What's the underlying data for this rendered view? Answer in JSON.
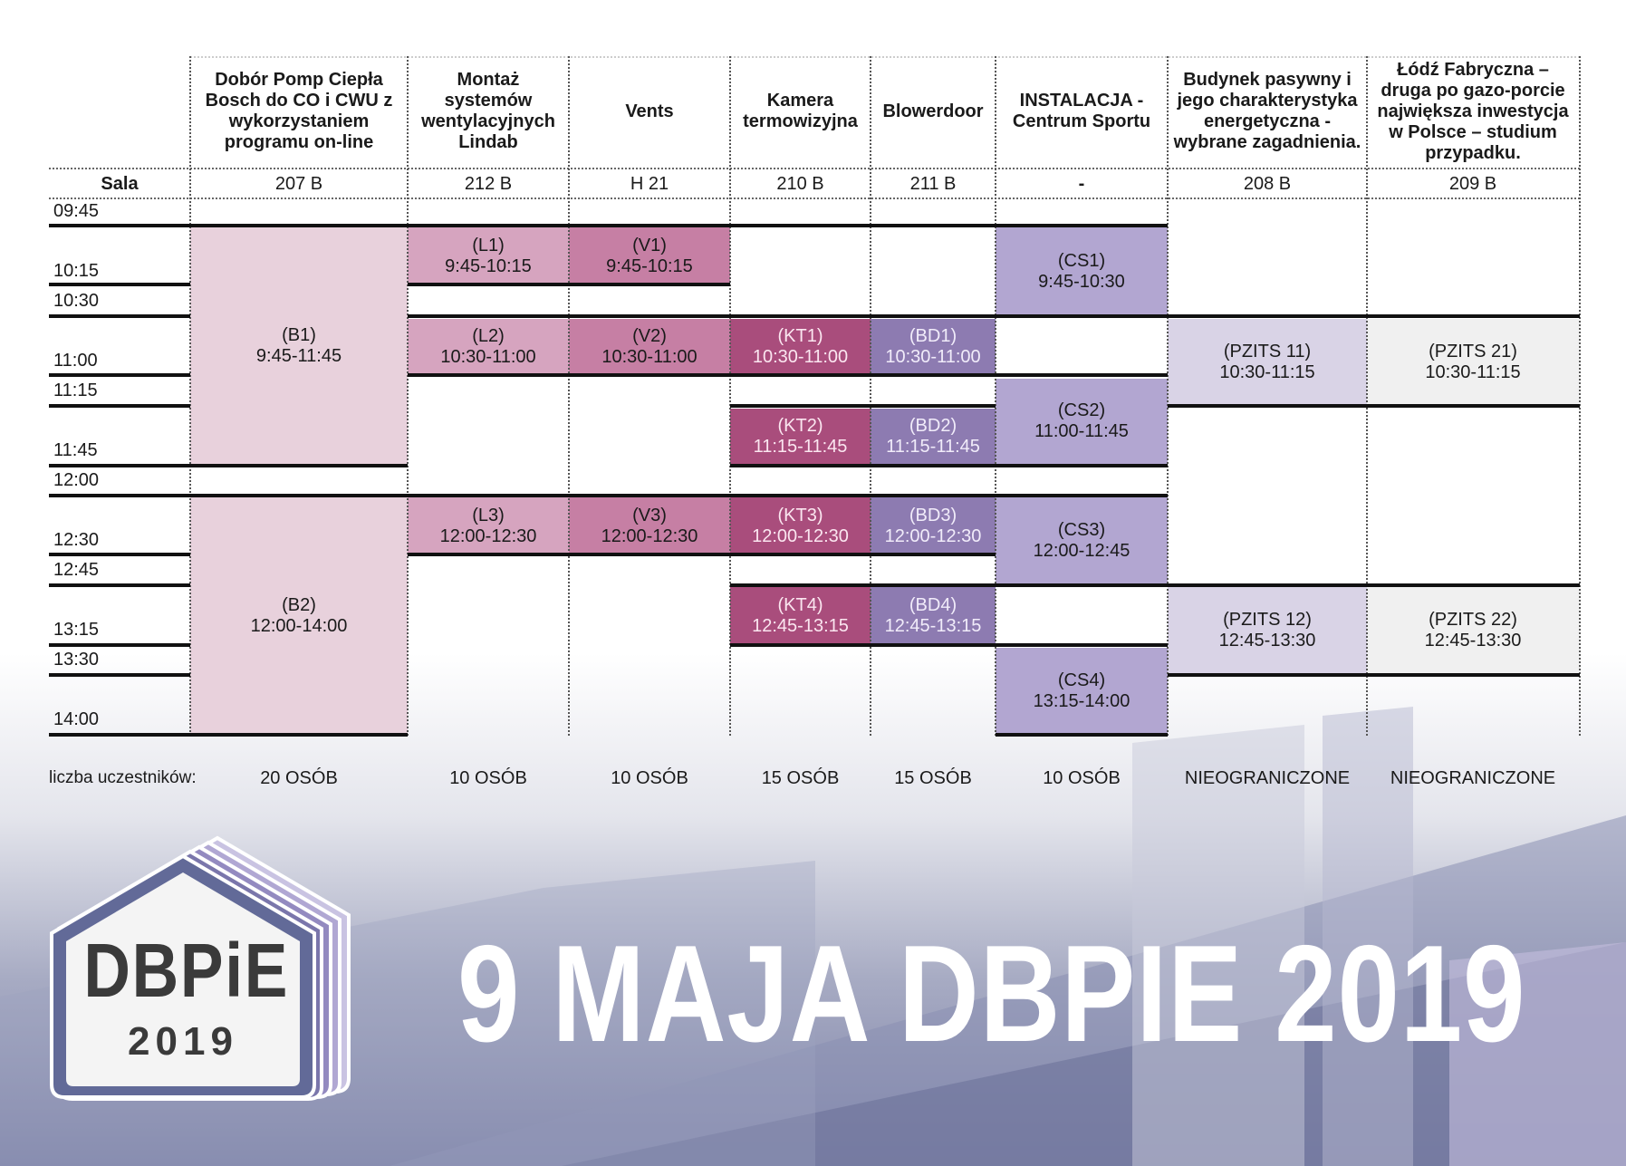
{
  "columns": [
    {
      "title": "Dobór Pomp Ciepła Bosch do CO i CWU z wykorzystaniem programu on-line",
      "room": "207 B",
      "capacity": "20 OSÓB"
    },
    {
      "title": "Montaż systemów wentylacyjnych Lindab",
      "room": "212 B",
      "capacity": "10 OSÓB"
    },
    {
      "title": "Vents",
      "room": "H 21",
      "capacity": "10 OSÓB"
    },
    {
      "title": "Kamera termowizyjna",
      "room": "210 B",
      "capacity": "15 OSÓB"
    },
    {
      "title": "Blowerdoor",
      "room": "211 B",
      "capacity": "15 OSÓB"
    },
    {
      "title": "INSTALACJA - Centrum Sportu",
      "room": "-",
      "capacity": "10 OSÓB"
    },
    {
      "title": "Budynek pasywny i jego charakterystyka energetyczna - wybrane zagadnienia.",
      "room": "208 B",
      "capacity": "NIEOGRANICZONE"
    },
    {
      "title": "Łódź Fabryczna – druga po gazo-porcie największa inwestycja w Polsce – studium przypadku.",
      "room": "209 B",
      "capacity": "NIEOGRANICZONE"
    }
  ],
  "room_label": "Sala",
  "times": [
    "09:45",
    "10:15",
    "10:30",
    "11:00",
    "11:15",
    "11:45",
    "12:00",
    "12:30",
    "12:45",
    "13:15",
    "13:30",
    "14:00"
  ],
  "sessions": {
    "B1": {
      "code": "(B1)",
      "time": "9:45-11:45",
      "color": "#e8d1dc"
    },
    "B2": {
      "code": "(B2)",
      "time": "12:00-14:00",
      "color": "#e8d1dc"
    },
    "L1": {
      "code": "(L1)",
      "time": "9:45-10:15",
      "color": "#d6a4bf"
    },
    "L2": {
      "code": "(L2)",
      "time": "10:30-11:00",
      "color": "#d6a4bf"
    },
    "L3": {
      "code": "(L3)",
      "time": "12:00-12:30",
      "color": "#d6a4bf"
    },
    "V1": {
      "code": "(V1)",
      "time": "9:45-10:15",
      "color": "#c67fa4"
    },
    "V2": {
      "code": "(V2)",
      "time": "10:30-11:00",
      "color": "#c67fa4"
    },
    "V3": {
      "code": "(V3)",
      "time": "12:00-12:30",
      "color": "#c67fa4"
    },
    "KT1": {
      "code": "(KT1)",
      "time": "10:30-11:00",
      "color": "#a94d7c"
    },
    "KT2": {
      "code": "(KT2)",
      "time": "11:15-11:45",
      "color": "#a94d7c"
    },
    "KT3": {
      "code": "(KT3)",
      "time": "12:00-12:30",
      "color": "#a94d7c"
    },
    "KT4": {
      "code": "(KT4)",
      "time": "12:45-13:15",
      "color": "#a94d7c"
    },
    "BD1": {
      "code": "(BD1)",
      "time": "10:30-11:00",
      "color": "#8d7bb1"
    },
    "BD2": {
      "code": "(BD2)",
      "time": "11:15-11:45",
      "color": "#8d7bb1"
    },
    "BD3": {
      "code": "(BD3)",
      "time": "12:00-12:30",
      "color": "#8d7bb1"
    },
    "BD4": {
      "code": "(BD4)",
      "time": "12:45-13:15",
      "color": "#8d7bb1"
    },
    "CS1": {
      "code": "(CS1)",
      "time": "9:45-10:30",
      "color": "#b2a6d1"
    },
    "CS2": {
      "code": "(CS2)",
      "time": "11:00-11:45",
      "color": "#b2a6d1"
    },
    "CS3": {
      "code": "(CS3)",
      "time": "12:00-12:45",
      "color": "#b2a6d1"
    },
    "CS4": {
      "code": "(CS4)",
      "time": "13:15-14:00",
      "color": "#b2a6d1"
    },
    "P11": {
      "code": "(PZITS 11)",
      "time": "10:30-11:15",
      "color": "#d9d3e6"
    },
    "P12": {
      "code": "(PZITS 12)",
      "time": "12:45-13:30",
      "color": "#d9d3e6"
    },
    "P21": {
      "code": "(PZITS 21)",
      "time": "10:30-11:15",
      "color": "#f0f0f0"
    },
    "P22": {
      "code": "(PZITS 22)",
      "time": "12:45-13:30",
      "color": "#f0f0f0"
    }
  },
  "participants_label": "liczba uczestników:",
  "logo": {
    "name": "DBPiE",
    "year": "2019"
  },
  "banner": "9 MAJA DBPIE 2019"
}
